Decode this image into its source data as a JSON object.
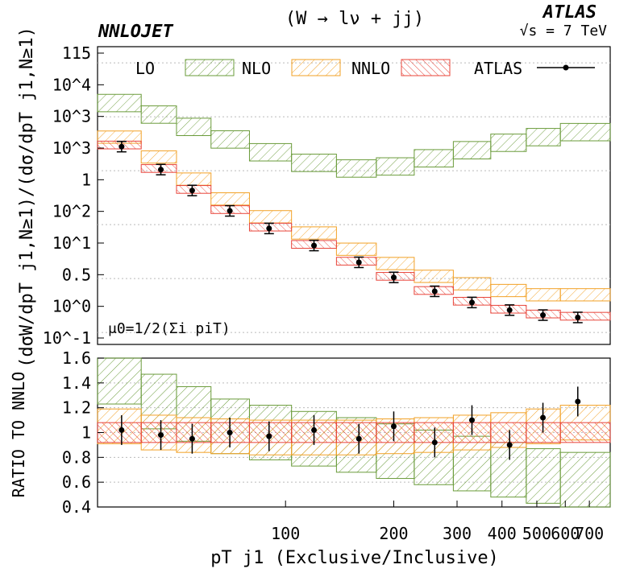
{
  "header": {
    "brand": "NNLOJET",
    "process": "(W → lν + jj)",
    "experiment": "ATLAS",
    "energy": "√s = 7 TeV"
  },
  "annotation": "μ0=1/2(Σi piT)",
  "legend": [
    {
      "label": "LO",
      "color": "#6a9b3a"
    },
    {
      "label": "NLO",
      "color": "#f2a126"
    },
    {
      "label": "NNLO",
      "color": "#e8443a"
    },
    {
      "label": "ATLAS",
      "color": "#000000"
    }
  ],
  "chart_data": [
    {
      "type": "line",
      "panel": "main",
      "title": "(W → lν + jj)",
      "xlabel": "pT j1 (Exclusive/Inclusive)",
      "ylabel": "(dσW/dpT j1,N≥1)/(dσ/dpT j1,N≥1)",
      "yscale": "log",
      "ylim": [
        0.06,
        20000
      ],
      "xlim": [
        30,
        800
      ],
      "ytick_labels": [
        "115",
        "10^4",
        "10^3",
        "10^3",
        "1",
        "10^2",
        "10^1",
        "0.5",
        "10^0",
        "10^-1"
      ],
      "x": [
        35,
        45,
        55,
        70,
        90,
        120,
        160,
        200,
        260,
        330,
        420,
        520,
        650
      ],
      "series": [
        {
          "name": "LO",
          "values": [
            1800,
            1100,
            650,
            380,
            220,
            140,
            110,
            120,
            170,
            240,
            330,
            420,
            520
          ]
        },
        {
          "name": "NLO",
          "values": [
            420,
            180,
            70,
            30,
            14,
            7,
            3.5,
            1.9,
            1.1,
            0.8,
            0.6,
            0.5,
            0.5
          ]
        },
        {
          "name": "NNLO",
          "values": [
            300,
            110,
            45,
            19,
            9,
            4.3,
            2.1,
            1.1,
            0.6,
            0.38,
            0.27,
            0.22,
            0.2
          ]
        },
        {
          "name": "ATLAS",
          "values": [
            280,
            105,
            43,
            18,
            8.5,
            4.1,
            2.0,
            1.05,
            0.58,
            0.36,
            0.26,
            0.21,
            0.19
          ]
        }
      ]
    },
    {
      "type": "line",
      "panel": "ratio",
      "ylabel": "RATIO TO NNLO",
      "ylim": [
        0.4,
        1.6
      ],
      "ytick_labels": [
        "1.6",
        "1.4",
        "1.2",
        "1",
        "0.8",
        "0.6",
        "0.4"
      ],
      "x": [
        35,
        45,
        55,
        70,
        90,
        120,
        160,
        200,
        260,
        330,
        420,
        520,
        650
      ],
      "series": [
        {
          "name": "LO",
          "values": [
            1.45,
            1.25,
            1.15,
            1.05,
            1.0,
            0.95,
            0.9,
            0.85,
            0.8,
            0.75,
            0.7,
            0.65,
            0.62
          ]
        },
        {
          "name": "NLO",
          "values": [
            1.05,
            1.0,
            0.98,
            0.97,
            0.96,
            0.96,
            0.96,
            0.97,
            0.98,
            1.0,
            1.02,
            1.05,
            1.08
          ]
        },
        {
          "name": "NNLO",
          "values": [
            1.0,
            1.0,
            1.0,
            1.0,
            1.0,
            1.0,
            1.0,
            1.0,
            1.0,
            1.0,
            1.0,
            1.0,
            1.0
          ]
        },
        {
          "name": "ATLAS",
          "values": [
            1.02,
            0.98,
            0.95,
            1.0,
            0.97,
            1.02,
            0.95,
            1.05,
            0.92,
            1.1,
            0.9,
            1.12,
            1.25
          ]
        }
      ]
    }
  ],
  "x_tick_labels": [
    "100",
    "200",
    "300",
    "400",
    "500",
    "600",
    "700"
  ],
  "x_axis_title": "pT j1 (Exclusive/Inclusive)"
}
